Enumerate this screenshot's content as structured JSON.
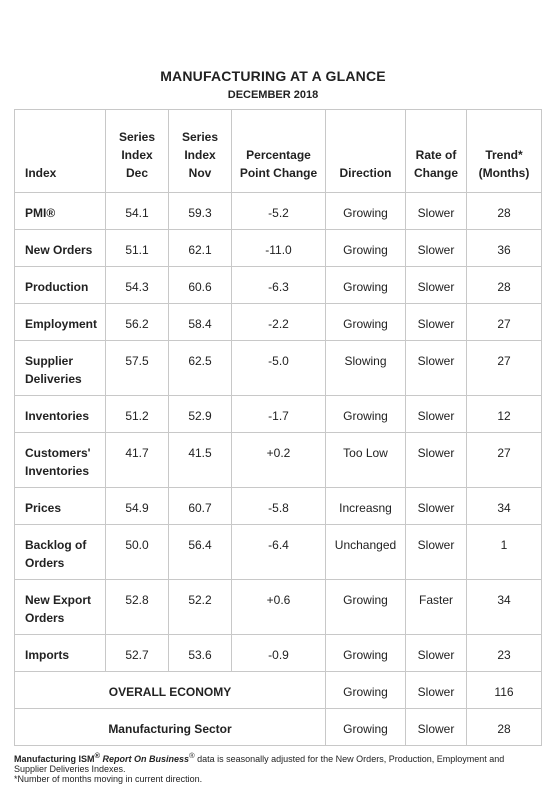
{
  "header": {
    "title": "MANUFACTURING AT A GLANCE",
    "subtitle": "DECEMBER 2018"
  },
  "table": {
    "columns": [
      [
        "Index"
      ],
      [
        "Series",
        "Index",
        "Dec"
      ],
      [
        "Series",
        "Index",
        "Nov"
      ],
      [
        "Percentage",
        "Point Change"
      ],
      [
        "Direction"
      ],
      [
        "Rate of",
        "Change"
      ],
      [
        "Trend*",
        "(Months)"
      ]
    ],
    "rows": [
      {
        "index": [
          "PMI®"
        ],
        "dec": "54.1",
        "nov": "59.3",
        "change": "-5.2",
        "direction": "Growing",
        "rate": "Slower",
        "trend": "28"
      },
      {
        "index": [
          "New Orders"
        ],
        "dec": "51.1",
        "nov": "62.1",
        "change": "-11.0",
        "direction": "Growing",
        "rate": "Slower",
        "trend": "36"
      },
      {
        "index": [
          "Production"
        ],
        "dec": "54.3",
        "nov": "60.6",
        "change": "-6.3",
        "direction": "Growing",
        "rate": "Slower",
        "trend": "28"
      },
      {
        "index": [
          "Employment"
        ],
        "dec": "56.2",
        "nov": "58.4",
        "change": "-2.2",
        "direction": "Growing",
        "rate": "Slower",
        "trend": "27"
      },
      {
        "index": [
          "Supplier",
          "Deliveries"
        ],
        "dec": "57.5",
        "nov": "62.5",
        "change": "-5.0",
        "direction": "Slowing",
        "rate": "Slower",
        "trend": "27"
      },
      {
        "index": [
          "Inventories"
        ],
        "dec": "51.2",
        "nov": "52.9",
        "change": "-1.7",
        "direction": "Growing",
        "rate": "Slower",
        "trend": "12"
      },
      {
        "index": [
          "Customers'",
          "Inventories"
        ],
        "dec": "41.7",
        "nov": "41.5",
        "change": "+0.2",
        "direction": "Too Low",
        "rate": "Slower",
        "trend": "27"
      },
      {
        "index": [
          "Prices"
        ],
        "dec": "54.9",
        "nov": "60.7",
        "change": "-5.8",
        "direction": "Increasng",
        "rate": "Slower",
        "trend": "34"
      },
      {
        "index": [
          "Backlog of",
          "Orders"
        ],
        "dec": "50.0",
        "nov": "56.4",
        "change": "-6.4",
        "direction": "Unchanged",
        "rate": "Slower",
        "trend": "1"
      },
      {
        "index": [
          "New Export",
          "Orders"
        ],
        "dec": "52.8",
        "nov": "52.2",
        "change": "+0.6",
        "direction": "Growing",
        "rate": "Faster",
        "trend": "34"
      },
      {
        "index": [
          "Imports"
        ],
        "dec": "52.7",
        "nov": "53.6",
        "change": "-0.9",
        "direction": "Growing",
        "rate": "Slower",
        "trend": "23"
      }
    ],
    "summary_rows": [
      {
        "label": "OVERALL ECONOMY",
        "direction": "Growing",
        "rate": "Slower",
        "trend": "116"
      },
      {
        "label": "Manufacturing Sector",
        "direction": "Growing",
        "rate": "Slower",
        "trend": "28"
      }
    ]
  },
  "footer": {
    "line1_prefix": "Manufacturing ISM",
    "line1_sup": "®",
    "line1_italic": "Report On Business",
    "line1_sup2": "®",
    "line1_rest": " data is seasonally adjusted for the New Orders, Production, Employment and Supplier Deliveries Indexes.",
    "line2": "*Number of months moving in current direction."
  }
}
